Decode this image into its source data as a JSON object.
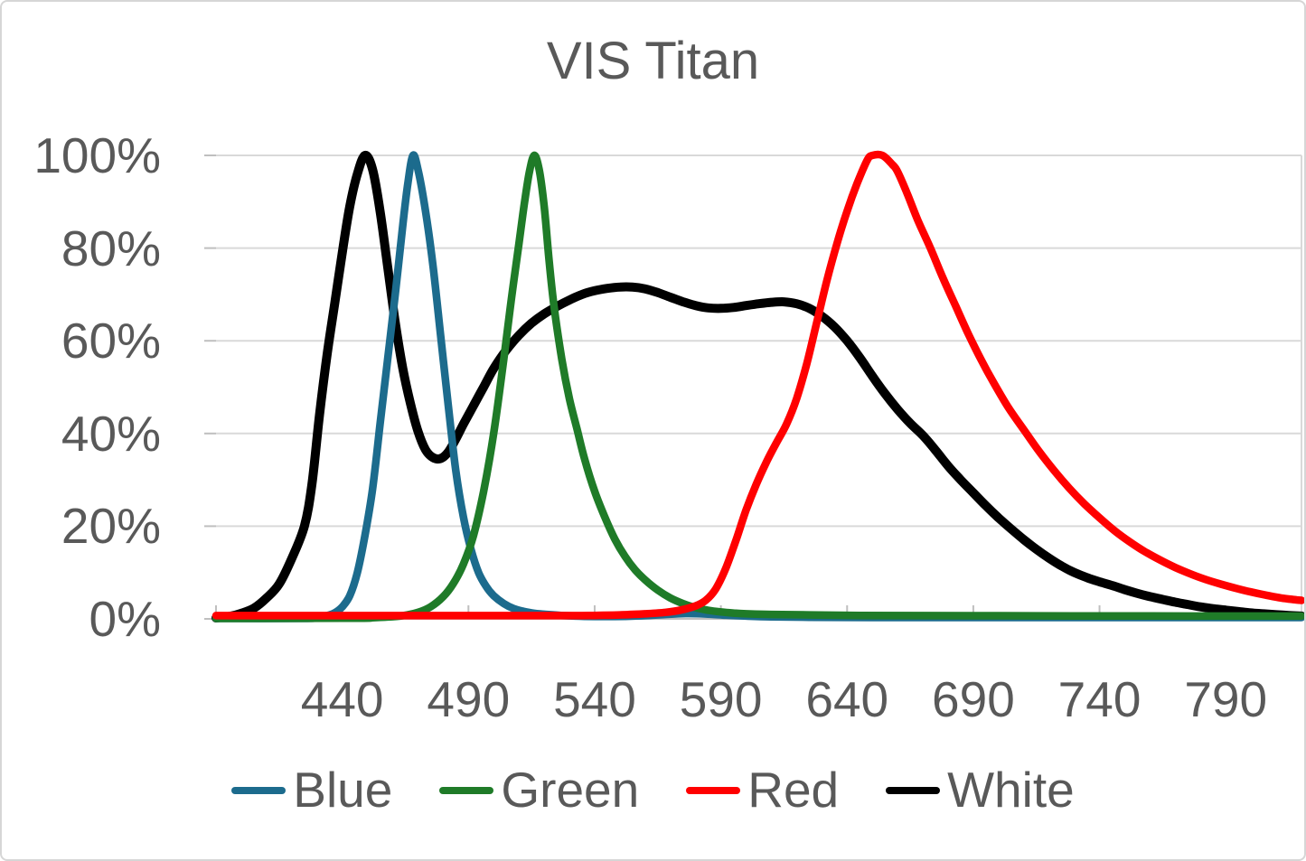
{
  "window": {
    "background": "#FFFFFF",
    "border_color": "#D6D6D6"
  },
  "colors": {
    "text": "#595959",
    "gridline": "#D9D9D9",
    "axis": "#BFBFBF",
    "blue_series": "#1C6B8D",
    "green_series": "#1F7B28",
    "red_series": "#FF0000",
    "white_series": "#000000"
  },
  "chart_data": {
    "type": "line",
    "title": "VIS Titan",
    "xlabel": "",
    "ylabel": "",
    "grid": "horizontal",
    "legend_position": "bottom",
    "x_range": [
      390,
      820
    ],
    "y_range": [
      0,
      100
    ],
    "x_minor_ticks": [
      390
    ],
    "x_ticks": [
      {
        "label": "440",
        "value": 440
      },
      {
        "label": "490",
        "value": 490
      },
      {
        "label": "540",
        "value": 540
      },
      {
        "label": "590",
        "value": 590
      },
      {
        "label": "640",
        "value": 640
      },
      {
        "label": "690",
        "value": 690
      },
      {
        "label": "740",
        "value": 740
      },
      {
        "label": "790",
        "value": 790
      }
    ],
    "y_ticks": [
      {
        "label": "0%",
        "value": 0
      },
      {
        "label": "20%",
        "value": 20
      },
      {
        "label": "40%",
        "value": 40
      },
      {
        "label": "60%",
        "value": 60
      },
      {
        "label": "80%",
        "value": 80
      },
      {
        "label": "100%",
        "value": 100
      }
    ],
    "draw_order": [
      "White",
      "Blue",
      "Green",
      "Red"
    ],
    "series": [
      {
        "name": "Blue",
        "color": "#1C6B8D",
        "peak_nm": 468,
        "points": [
          [
            390,
            0.1
          ],
          [
            425,
            0.1
          ],
          [
            430,
            0.3
          ],
          [
            434,
            0.7
          ],
          [
            437,
            1.3
          ],
          [
            440,
            2.6
          ],
          [
            443,
            5
          ],
          [
            446,
            10
          ],
          [
            449,
            18
          ],
          [
            452,
            28
          ],
          [
            455,
            42
          ],
          [
            458,
            56
          ],
          [
            461,
            70
          ],
          [
            464,
            85
          ],
          [
            466,
            94
          ],
          [
            468,
            100
          ],
          [
            470,
            97
          ],
          [
            473,
            88
          ],
          [
            476,
            76
          ],
          [
            479,
            61
          ],
          [
            482,
            46
          ],
          [
            485,
            32
          ],
          [
            488,
            22
          ],
          [
            491,
            15
          ],
          [
            494,
            10
          ],
          [
            497,
            7
          ],
          [
            500,
            5
          ],
          [
            504,
            3.3
          ],
          [
            508,
            2.2
          ],
          [
            512,
            1.6
          ],
          [
            516,
            1.2
          ],
          [
            520,
            1
          ],
          [
            528,
            0.7
          ],
          [
            536,
            0.55
          ],
          [
            544,
            0.5
          ],
          [
            552,
            0.55
          ],
          [
            560,
            0.7
          ],
          [
            568,
            0.95
          ],
          [
            576,
            1.15
          ],
          [
            584,
            1.05
          ],
          [
            592,
            0.8
          ],
          [
            600,
            0.6
          ],
          [
            610,
            0.45
          ],
          [
            625,
            0.35
          ],
          [
            650,
            0.3
          ],
          [
            690,
            0.3
          ],
          [
            730,
            0.3
          ],
          [
            770,
            0.3
          ],
          [
            820,
            0.3
          ]
        ]
      },
      {
        "name": "Green",
        "color": "#1F7B28",
        "peak_nm": 516,
        "points": [
          [
            390,
            0.1
          ],
          [
            445,
            0.15
          ],
          [
            452,
            0.25
          ],
          [
            458,
            0.4
          ],
          [
            464,
            0.7
          ],
          [
            470,
            1.4
          ],
          [
            475,
            2.6
          ],
          [
            480,
            4.8
          ],
          [
            484,
            7.6
          ],
          [
            488,
            11.8
          ],
          [
            492,
            18
          ],
          [
            496,
            27.5
          ],
          [
            500,
            40
          ],
          [
            504,
            56
          ],
          [
            507,
            69
          ],
          [
            510,
            81
          ],
          [
            512,
            89
          ],
          [
            514,
            96
          ],
          [
            516,
            100
          ],
          [
            518,
            97
          ],
          [
            520,
            89
          ],
          [
            522,
            77
          ],
          [
            524,
            67
          ],
          [
            527,
            56
          ],
          [
            530,
            47.5
          ],
          [
            533,
            41
          ],
          [
            536,
            34.5
          ],
          [
            540,
            27.5
          ],
          [
            544,
            22
          ],
          [
            548,
            17.2
          ],
          [
            552,
            13.5
          ],
          [
            556,
            10.6
          ],
          [
            560,
            8.4
          ],
          [
            565,
            6.2
          ],
          [
            570,
            4.5
          ],
          [
            575,
            3.3
          ],
          [
            580,
            2.4
          ],
          [
            585,
            1.85
          ],
          [
            590,
            1.5
          ],
          [
            595,
            1.25
          ],
          [
            600,
            1.1
          ],
          [
            610,
            0.95
          ],
          [
            625,
            0.85
          ],
          [
            645,
            0.75
          ],
          [
            670,
            0.7
          ],
          [
            700,
            0.68
          ],
          [
            730,
            0.65
          ],
          [
            760,
            0.62
          ],
          [
            790,
            0.6
          ],
          [
            820,
            0.6
          ]
        ]
      },
      {
        "name": "Red",
        "color": "#FF0000",
        "peak_nm": 652,
        "points": [
          [
            390,
            0.7
          ],
          [
            450,
            0.7
          ],
          [
            500,
            0.7
          ],
          [
            530,
            0.7
          ],
          [
            540,
            0.75
          ],
          [
            550,
            0.85
          ],
          [
            560,
            1.1
          ],
          [
            568,
            1.4
          ],
          [
            574,
            1.9
          ],
          [
            580,
            2.8
          ],
          [
            584,
            4
          ],
          [
            588,
            6.5
          ],
          [
            592,
            11
          ],
          [
            596,
            17
          ],
          [
            600,
            23.5
          ],
          [
            604,
            29
          ],
          [
            608,
            33.8
          ],
          [
            612,
            38
          ],
          [
            616,
            42
          ],
          [
            620,
            47.5
          ],
          [
            624,
            55
          ],
          [
            628,
            64
          ],
          [
            632,
            73
          ],
          [
            636,
            81
          ],
          [
            640,
            88
          ],
          [
            644,
            94
          ],
          [
            648,
            99
          ],
          [
            650,
            100
          ],
          [
            654,
            100
          ],
          [
            658,
            98
          ],
          [
            660,
            96.5
          ],
          [
            664,
            91.5
          ],
          [
            668,
            86
          ],
          [
            673,
            80
          ],
          [
            678,
            73.5
          ],
          [
            683,
            67.5
          ],
          [
            688,
            61.5
          ],
          [
            693,
            56
          ],
          [
            698,
            51
          ],
          [
            704,
            45.5
          ],
          [
            710,
            40.8
          ],
          [
            716,
            36.2
          ],
          [
            722,
            32
          ],
          [
            728,
            28.2
          ],
          [
            734,
            24.8
          ],
          [
            740,
            21.8
          ],
          [
            746,
            19
          ],
          [
            752,
            16.6
          ],
          [
            758,
            14.5
          ],
          [
            764,
            12.7
          ],
          [
            770,
            11.1
          ],
          [
            776,
            9.7
          ],
          [
            782,
            8.5
          ],
          [
            788,
            7.5
          ],
          [
            794,
            6.6
          ],
          [
            800,
            5.8
          ],
          [
            806,
            5.1
          ],
          [
            812,
            4.5
          ],
          [
            818,
            4.1
          ],
          [
            820,
            4
          ]
        ]
      },
      {
        "name": "White",
        "color": "#000000",
        "peak_nm": 449,
        "points": [
          [
            390,
            0.2
          ],
          [
            395,
            0.5
          ],
          [
            400,
            1.2
          ],
          [
            405,
            2.3
          ],
          [
            410,
            4.5
          ],
          [
            415,
            7.5
          ],
          [
            420,
            13
          ],
          [
            425,
            20
          ],
          [
            428,
            29
          ],
          [
            431,
            44
          ],
          [
            434,
            57
          ],
          [
            437,
            68
          ],
          [
            440,
            79
          ],
          [
            443,
            89
          ],
          [
            446,
            96
          ],
          [
            449,
            100
          ],
          [
            452,
            97
          ],
          [
            455,
            88
          ],
          [
            458,
            76
          ],
          [
            461,
            64
          ],
          [
            464,
            54
          ],
          [
            467,
            46.5
          ],
          [
            470,
            40.5
          ],
          [
            473,
            36.5
          ],
          [
            476,
            34.8
          ],
          [
            479,
            34.6
          ],
          [
            482,
            36
          ],
          [
            485,
            38.8
          ],
          [
            488,
            42
          ],
          [
            492,
            46
          ],
          [
            496,
            50
          ],
          [
            500,
            54
          ],
          [
            505,
            58
          ],
          [
            510,
            61.2
          ],
          [
            515,
            63.8
          ],
          [
            520,
            65.8
          ],
          [
            525,
            67.4
          ],
          [
            530,
            68.8
          ],
          [
            535,
            70
          ],
          [
            540,
            70.8
          ],
          [
            545,
            71.3
          ],
          [
            550,
            71.6
          ],
          [
            555,
            71.6
          ],
          [
            560,
            71.2
          ],
          [
            565,
            70.4
          ],
          [
            570,
            69.4
          ],
          [
            575,
            68.4
          ],
          [
            580,
            67.6
          ],
          [
            585,
            67.1
          ],
          [
            590,
            67
          ],
          [
            595,
            67.2
          ],
          [
            600,
            67.6
          ],
          [
            605,
            68
          ],
          [
            610,
            68.3
          ],
          [
            615,
            68.4
          ],
          [
            620,
            68
          ],
          [
            625,
            67
          ],
          [
            630,
            65.3
          ],
          [
            635,
            63
          ],
          [
            640,
            60
          ],
          [
            645,
            56.4
          ],
          [
            650,
            52.4
          ],
          [
            655,
            48.6
          ],
          [
            660,
            45.2
          ],
          [
            665,
            42.2
          ],
          [
            670,
            39.6
          ],
          [
            675,
            36.4
          ],
          [
            680,
            33
          ],
          [
            685,
            30
          ],
          [
            690,
            27.2
          ],
          [
            695,
            24.4
          ],
          [
            700,
            21.8
          ],
          [
            705,
            19.4
          ],
          [
            710,
            17.1
          ],
          [
            715,
            15
          ],
          [
            720,
            13.1
          ],
          [
            725,
            11.4
          ],
          [
            730,
            10
          ],
          [
            735,
            8.9
          ],
          [
            740,
            8
          ],
          [
            745,
            7.2
          ],
          [
            750,
            6.3
          ],
          [
            755,
            5.5
          ],
          [
            760,
            4.8
          ],
          [
            765,
            4.2
          ],
          [
            770,
            3.6
          ],
          [
            775,
            3.1
          ],
          [
            780,
            2.6
          ],
          [
            785,
            2.2
          ],
          [
            790,
            1.9
          ],
          [
            795,
            1.6
          ],
          [
            800,
            1.3
          ],
          [
            805,
            1.1
          ],
          [
            810,
            0.9
          ],
          [
            815,
            0.75
          ],
          [
            820,
            0.6
          ]
        ]
      }
    ],
    "legend": [
      "Blue",
      "Green",
      "Red",
      "White"
    ]
  }
}
